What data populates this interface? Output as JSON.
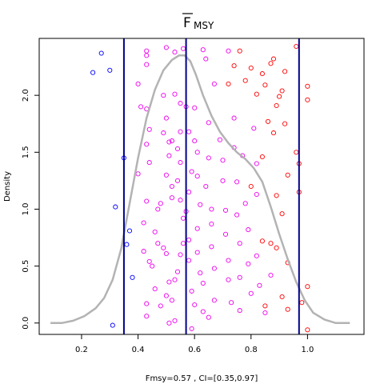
{
  "chart_data": {
    "type": "scatter",
    "title_main": "F",
    "title_sub": "MSY",
    "xlabel": "Fmsy=0.57 , CI=[0.35,0.97]",
    "ylabel": "Density",
    "xlim": [
      0.05,
      1.2
    ],
    "ylim": [
      -0.1,
      2.5
    ],
    "x_ticks": [
      0.2,
      0.4,
      0.6,
      0.8,
      1.0
    ],
    "x_tick_labels": [
      "0.2",
      "0.4",
      "0.6",
      "0.8",
      "1.0"
    ],
    "y_ticks": [
      0.0,
      0.5,
      1.0,
      1.5,
      2.0
    ],
    "y_tick_labels": [
      "0.0",
      "0.5",
      "1.0",
      "1.5",
      "2.0"
    ],
    "grid": false,
    "vertical_lines": [
      {
        "x": 0.35,
        "color": "#00008b"
      },
      {
        "x": 0.57,
        "color": "#00008b"
      },
      {
        "x": 0.97,
        "color": "#00008b"
      }
    ],
    "density_curve": {
      "color": "#b3b3b3",
      "x": [
        0.09,
        0.13,
        0.17,
        0.21,
        0.25,
        0.28,
        0.31,
        0.34,
        0.37,
        0.4,
        0.43,
        0.46,
        0.49,
        0.52,
        0.545,
        0.565,
        0.585,
        0.605,
        0.63,
        0.66,
        0.69,
        0.72,
        0.75,
        0.78,
        0.81,
        0.84,
        0.87,
        0.9,
        0.93,
        0.96,
        0.99,
        1.02,
        1.06,
        1.1,
        1.15
      ],
      "y": [
        0.0,
        0.0,
        0.02,
        0.06,
        0.13,
        0.22,
        0.38,
        0.65,
        1.05,
        1.45,
        1.8,
        2.05,
        2.22,
        2.31,
        2.35,
        2.35,
        2.3,
        2.18,
        2.0,
        1.82,
        1.68,
        1.58,
        1.5,
        1.44,
        1.36,
        1.24,
        1.02,
        0.78,
        0.56,
        0.36,
        0.2,
        0.09,
        0.03,
        0.0,
        0.0
      ]
    },
    "colors": {
      "low": "#0000ff",
      "mid": "#ee00ee",
      "high": "#ff0000"
    },
    "points": [
      [
        0.27,
        2.37,
        "low"
      ],
      [
        0.24,
        2.2,
        "low"
      ],
      [
        0.3,
        2.22,
        "low"
      ],
      [
        0.35,
        1.45,
        "low"
      ],
      [
        0.32,
        1.02,
        "low"
      ],
      [
        0.36,
        0.69,
        "low"
      ],
      [
        0.37,
        0.81,
        "low"
      ],
      [
        0.38,
        0.4,
        "low"
      ],
      [
        0.31,
        -0.02,
        "low"
      ],
      [
        0.43,
        2.39,
        "mid"
      ],
      [
        0.43,
        2.35,
        "mid"
      ],
      [
        0.43,
        2.27,
        "mid"
      ],
      [
        0.4,
        2.1,
        "mid"
      ],
      [
        0.41,
        1.9,
        "mid"
      ],
      [
        0.43,
        1.88,
        "mid"
      ],
      [
        0.44,
        1.7,
        "mid"
      ],
      [
        0.43,
        1.57,
        "mid"
      ],
      [
        0.4,
        1.31,
        "mid"
      ],
      [
        0.44,
        1.41,
        "mid"
      ],
      [
        0.43,
        1.07,
        "mid"
      ],
      [
        0.42,
        0.88,
        "mid"
      ],
      [
        0.42,
        0.63,
        "mid"
      ],
      [
        0.44,
        0.54,
        "mid"
      ],
      [
        0.45,
        0.5,
        "mid"
      ],
      [
        0.46,
        0.8,
        "mid"
      ],
      [
        0.47,
        0.7,
        "mid"
      ],
      [
        0.47,
        1.0,
        "mid"
      ],
      [
        0.48,
        1.05,
        "mid"
      ],
      [
        0.49,
        0.66,
        "mid"
      ],
      [
        0.5,
        0.61,
        "mid"
      ],
      [
        0.51,
        0.36,
        "mid"
      ],
      [
        0.5,
        0.24,
        "mid"
      ],
      [
        0.48,
        0.15,
        "mid"
      ],
      [
        0.46,
        0.3,
        "mid"
      ],
      [
        0.43,
        0.17,
        "mid"
      ],
      [
        0.43,
        0.06,
        "mid"
      ],
      [
        0.51,
        0.0,
        "mid"
      ],
      [
        0.5,
        2.42,
        "mid"
      ],
      [
        0.49,
        2.0,
        "mid"
      ],
      [
        0.5,
        1.8,
        "mid"
      ],
      [
        0.49,
        1.67,
        "mid"
      ],
      [
        0.51,
        1.59,
        "mid"
      ],
      [
        0.52,
        1.6,
        "mid"
      ],
      [
        0.51,
        1.47,
        "mid"
      ],
      [
        0.5,
        1.3,
        "mid"
      ],
      [
        0.52,
        1.2,
        "mid"
      ],
      [
        0.52,
        1.1,
        "mid"
      ],
      [
        0.53,
        2.38,
        "mid"
      ],
      [
        0.53,
        2.01,
        "mid"
      ],
      [
        0.55,
        1.93,
        "mid"
      ],
      [
        0.55,
        1.68,
        "mid"
      ],
      [
        0.54,
        1.53,
        "mid"
      ],
      [
        0.55,
        1.41,
        "mid"
      ],
      [
        0.54,
        1.25,
        "mid"
      ],
      [
        0.55,
        1.08,
        "mid"
      ],
      [
        0.56,
        0.92,
        "mid"
      ],
      [
        0.56,
        0.7,
        "mid"
      ],
      [
        0.55,
        0.6,
        "mid"
      ],
      [
        0.54,
        0.45,
        "mid"
      ],
      [
        0.53,
        0.38,
        "mid"
      ],
      [
        0.52,
        0.2,
        "mid"
      ],
      [
        0.53,
        0.02,
        "mid"
      ],
      [
        0.56,
        2.41,
        "mid"
      ],
      [
        0.57,
        1.9,
        "mid"
      ],
      [
        0.58,
        1.68,
        "mid"
      ],
      [
        0.59,
        1.33,
        "mid"
      ],
      [
        0.58,
        1.15,
        "mid"
      ],
      [
        0.57,
        0.98,
        "mid"
      ],
      [
        0.58,
        0.73,
        "mid"
      ],
      [
        0.58,
        0.55,
        "mid"
      ],
      [
        0.59,
        0.28,
        "mid"
      ],
      [
        0.6,
        0.16,
        "mid"
      ],
      [
        0.59,
        -0.05,
        "mid"
      ],
      [
        0.6,
        1.89,
        "mid"
      ],
      [
        0.6,
        1.6,
        "mid"
      ],
      [
        0.61,
        1.5,
        "mid"
      ],
      [
        0.61,
        1.29,
        "mid"
      ],
      [
        0.62,
        1.04,
        "mid"
      ],
      [
        0.61,
        0.83,
        "mid"
      ],
      [
        0.61,
        0.62,
        "mid"
      ],
      [
        0.62,
        0.44,
        "mid"
      ],
      [
        0.63,
        0.35,
        "mid"
      ],
      [
        0.63,
        0.1,
        "mid"
      ],
      [
        0.63,
        2.4,
        "mid"
      ],
      [
        0.64,
        2.32,
        "mid"
      ],
      [
        0.65,
        1.76,
        "mid"
      ],
      [
        0.65,
        1.45,
        "mid"
      ],
      [
        0.64,
        1.2,
        "mid"
      ],
      [
        0.66,
        1.0,
        "mid"
      ],
      [
        0.66,
        0.87,
        "mid"
      ],
      [
        0.66,
        0.67,
        "mid"
      ],
      [
        0.67,
        0.48,
        "mid"
      ],
      [
        0.67,
        0.2,
        "mid"
      ],
      [
        0.65,
        0.05,
        "mid"
      ],
      [
        0.67,
        2.1,
        "mid"
      ],
      [
        0.69,
        1.61,
        "mid"
      ],
      [
        0.7,
        1.43,
        "mid"
      ],
      [
        0.7,
        1.25,
        "mid"
      ],
      [
        0.71,
        0.99,
        "mid"
      ],
      [
        0.71,
        0.78,
        "mid"
      ],
      [
        0.72,
        0.55,
        "mid"
      ],
      [
        0.72,
        0.38,
        "mid"
      ],
      [
        0.73,
        0.18,
        "mid"
      ],
      [
        0.72,
        2.39,
        "mid"
      ],
      [
        0.74,
        1.8,
        "mid"
      ],
      [
        0.74,
        1.54,
        "mid"
      ],
      [
        0.75,
        1.24,
        "mid"
      ],
      [
        0.75,
        0.95,
        "mid"
      ],
      [
        0.76,
        0.7,
        "mid"
      ],
      [
        0.76,
        0.4,
        "mid"
      ],
      [
        0.76,
        0.11,
        "mid"
      ],
      [
        0.77,
        1.47,
        "mid"
      ],
      [
        0.78,
        1.05,
        "mid"
      ],
      [
        0.79,
        0.82,
        "mid"
      ],
      [
        0.79,
        0.52,
        "mid"
      ],
      [
        0.8,
        0.26,
        "mid"
      ],
      [
        0.81,
        1.71,
        "mid"
      ],
      [
        0.82,
        1.4,
        "mid"
      ],
      [
        0.82,
        1.13,
        "mid"
      ],
      [
        0.82,
        0.59,
        "mid"
      ],
      [
        0.83,
        0.33,
        "mid"
      ],
      [
        0.85,
        0.09,
        "mid"
      ],
      [
        0.87,
        0.42,
        "mid"
      ],
      [
        0.72,
        2.1,
        "high"
      ],
      [
        0.74,
        2.26,
        "high"
      ],
      [
        0.76,
        2.39,
        "high"
      ],
      [
        0.78,
        2.13,
        "high"
      ],
      [
        0.8,
        2.24,
        "high"
      ],
      [
        0.82,
        2.01,
        "high"
      ],
      [
        0.84,
        2.19,
        "high"
      ],
      [
        0.85,
        2.09,
        "high"
      ],
      [
        0.87,
        2.28,
        "high"
      ],
      [
        0.88,
        2.32,
        "high"
      ],
      [
        0.86,
        1.77,
        "high"
      ],
      [
        0.88,
        1.67,
        "high"
      ],
      [
        0.89,
        1.91,
        "high"
      ],
      [
        0.9,
        1.99,
        "high"
      ],
      [
        0.91,
        2.04,
        "high"
      ],
      [
        0.92,
        2.21,
        "high"
      ],
      [
        0.92,
        1.75,
        "high"
      ],
      [
        0.93,
        1.3,
        "high"
      ],
      [
        0.89,
        1.12,
        "high"
      ],
      [
        0.91,
        0.96,
        "high"
      ],
      [
        0.89,
        0.66,
        "high"
      ],
      [
        0.93,
        0.53,
        "high"
      ],
      [
        0.91,
        0.23,
        "high"
      ],
      [
        0.93,
        0.12,
        "high"
      ],
      [
        0.96,
        1.5,
        "high"
      ],
      [
        0.97,
        1.4,
        "high"
      ],
      [
        0.97,
        1.15,
        "high"
      ],
      [
        0.98,
        0.18,
        "high"
      ],
      [
        1.0,
        0.32,
        "high"
      ],
      [
        1.0,
        2.08,
        "high"
      ],
      [
        1.0,
        1.96,
        "high"
      ],
      [
        1.0,
        -0.06,
        "high"
      ],
      [
        0.84,
        1.46,
        "high"
      ],
      [
        0.8,
        1.2,
        "high"
      ],
      [
        0.84,
        0.72,
        "high"
      ],
      [
        0.87,
        0.7,
        "high"
      ],
      [
        0.96,
        2.43,
        "high"
      ],
      [
        0.85,
        0.15,
        "high"
      ]
    ]
  }
}
